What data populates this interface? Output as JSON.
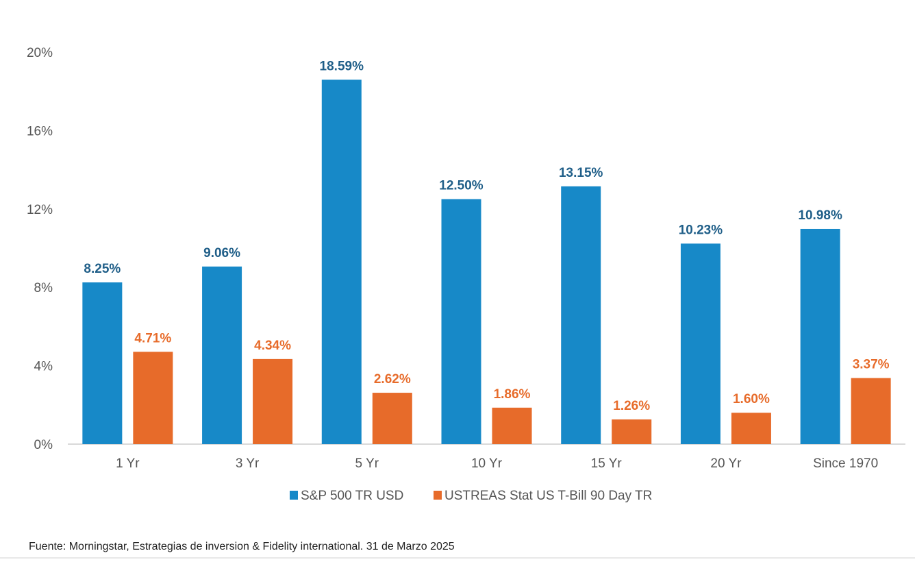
{
  "chart_data": {
    "type": "bar",
    "title": "",
    "xlabel": "",
    "ylabel": "",
    "ylim": [
      0,
      20
    ],
    "yticks": [
      "0%",
      "4%",
      "8%",
      "12%",
      "16%",
      "20%"
    ],
    "ytick_values": [
      0,
      4,
      8,
      12,
      16,
      20
    ],
    "categories": [
      "1 Yr",
      "3 Yr",
      "5 Yr",
      "10 Yr",
      "15 Yr",
      "20 Yr",
      "Since 1970"
    ],
    "series": [
      {
        "name": "S&P 500 TR USD",
        "color": "#1789C8",
        "label_color": "#1F5E88",
        "values": [
          8.25,
          9.06,
          18.59,
          12.5,
          13.15,
          10.23,
          10.98
        ],
        "labels": [
          "8.25%",
          "9.06%",
          "18.59%",
          "12.50%",
          "13.15%",
          "10.23%",
          "10.98%"
        ]
      },
      {
        "name": "USTREAS Stat US T-Bill 90 Day TR",
        "color": "#E76B2A",
        "label_color": "#E76B2A",
        "values": [
          4.71,
          4.34,
          2.62,
          1.86,
          1.26,
          1.6,
          3.37
        ],
        "labels": [
          "4.71%",
          "4.34%",
          "2.62%",
          "1.86%",
          "1.26%",
          "1.60%",
          "3.37%"
        ]
      }
    ],
    "grid": false,
    "legend": "bottom-center"
  },
  "source": "Fuente: Morningstar, Estrategias de inversion & Fidelity international. 31 de Marzo 2025"
}
